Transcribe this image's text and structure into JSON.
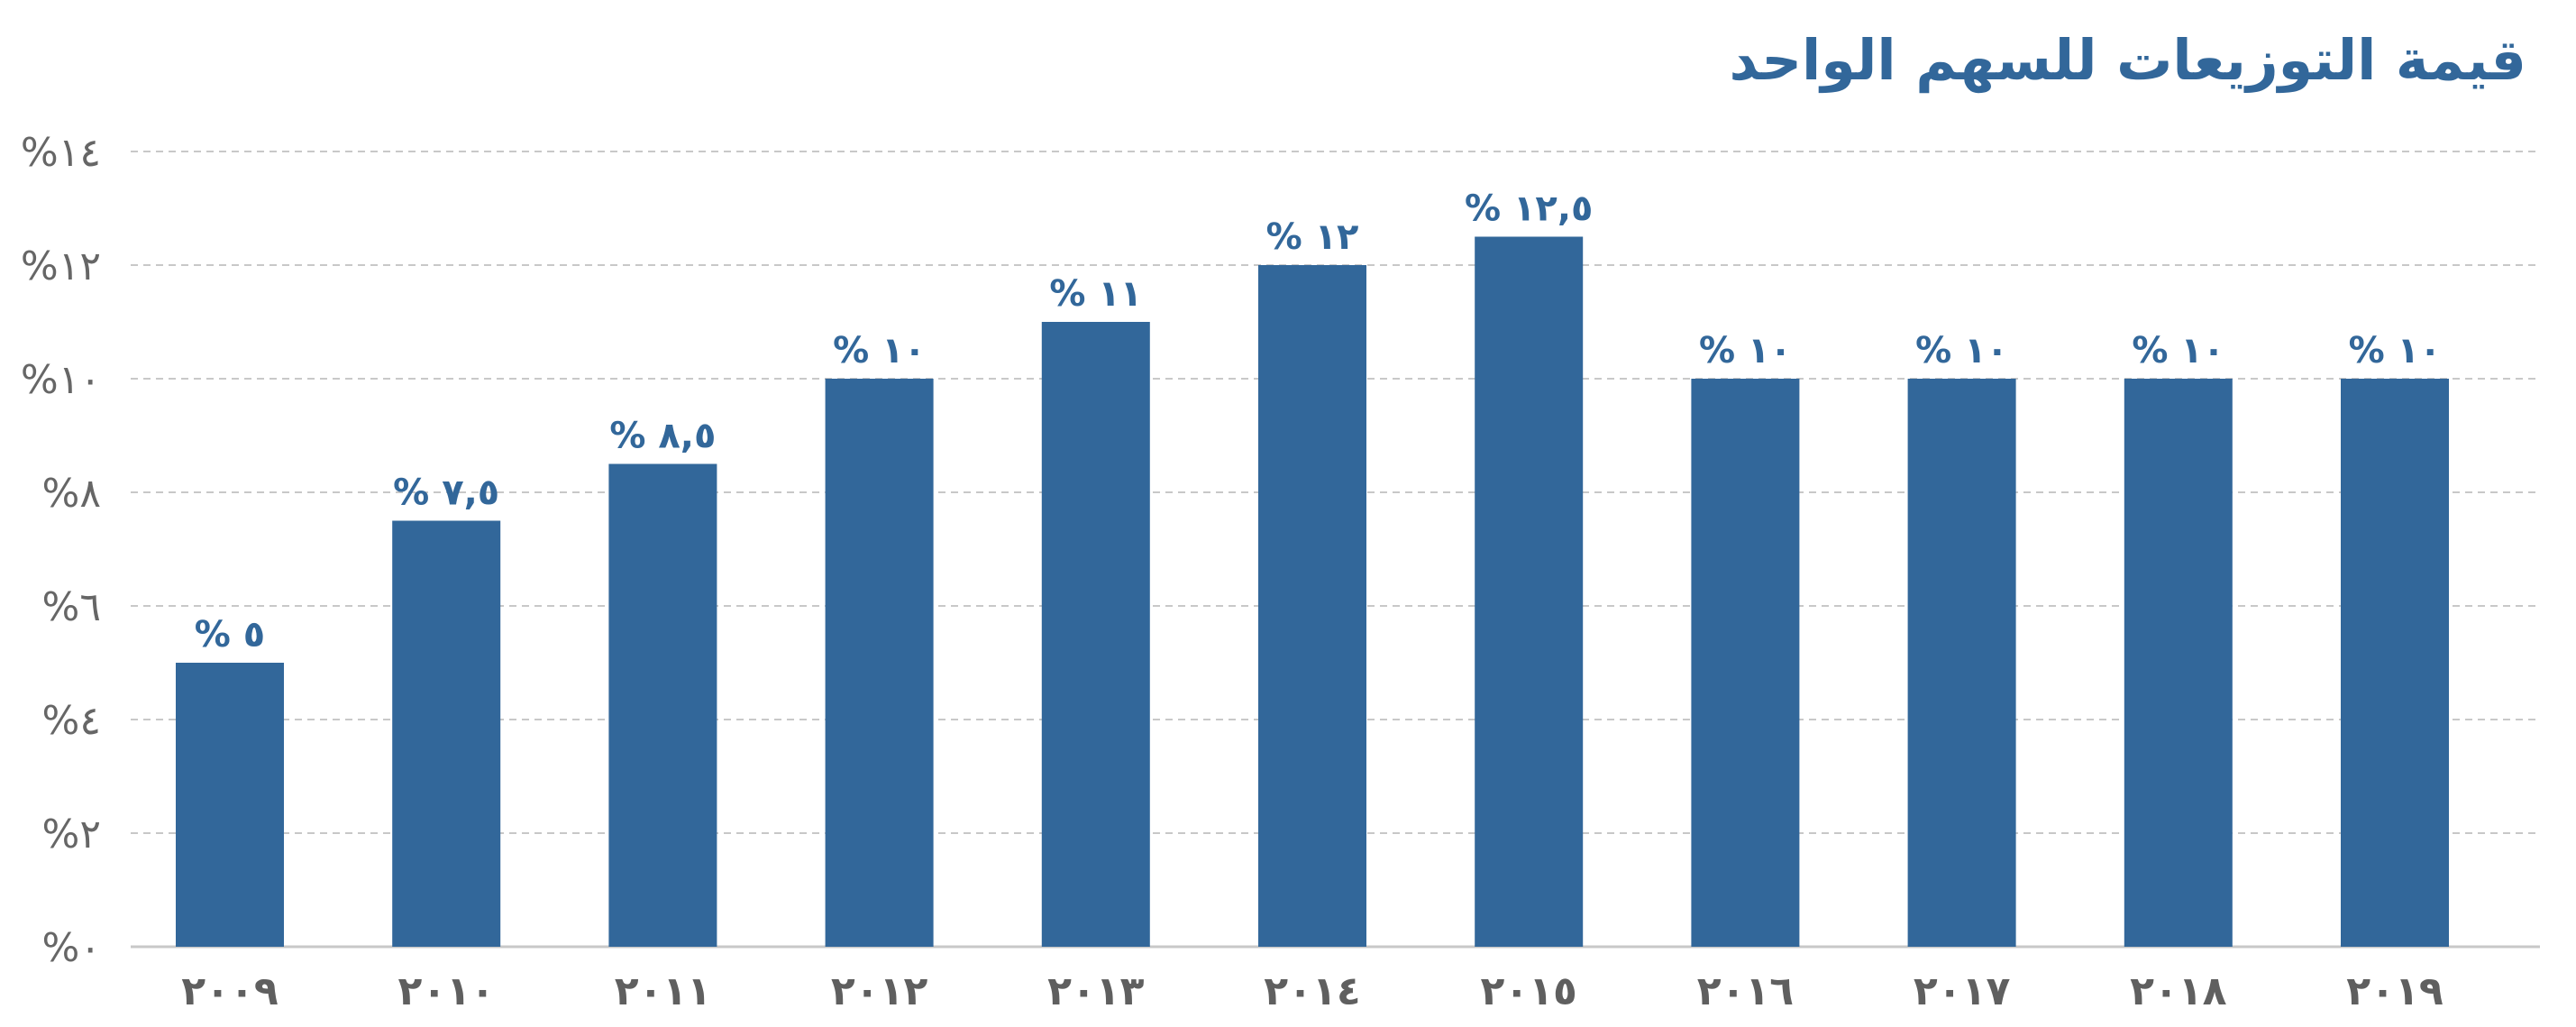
{
  "chart_data": {
    "type": "bar",
    "title": "قيمة التوزيعات للسهم الواحد",
    "xlabel": "",
    "ylabel": "",
    "categories": [
      "٢٠٠٩",
      "٢٠١٠",
      "٢٠١١",
      "٢٠١٢",
      "٢٠١٣",
      "٢٠١٤",
      "٢٠١٥",
      "٢٠١٦",
      "٢٠١٧",
      "٢٠١٨",
      "٢٠١٩"
    ],
    "values": [
      5,
      7.5,
      8.5,
      10,
      11,
      12,
      12.5,
      10,
      10,
      10,
      10
    ],
    "data_labels": [
      "% ٥",
      "% ٧,٥",
      "% ٨,٥",
      "% ١٠",
      "% ١١",
      "% ١٢",
      "% ١٢,٥",
      "% ١٠",
      "% ١٠",
      "% ١٠",
      "% ١٠"
    ],
    "ylim": [
      0,
      14
    ],
    "yticks": [
      0,
      2,
      4,
      6,
      8,
      10,
      12,
      14
    ],
    "ytick_labels": [
      "%٠",
      "%٢",
      "%٤",
      "%٦",
      "%٨",
      "%١٠",
      "%١٢",
      "%١٤"
    ],
    "grid": true,
    "legend": "none",
    "colors": {
      "bar": "#32679a",
      "title": "#32679a",
      "data_label": "#32679a",
      "tick_label": "#666666",
      "grid": "#c8c8c8",
      "axis": "#c8c8c8"
    }
  }
}
